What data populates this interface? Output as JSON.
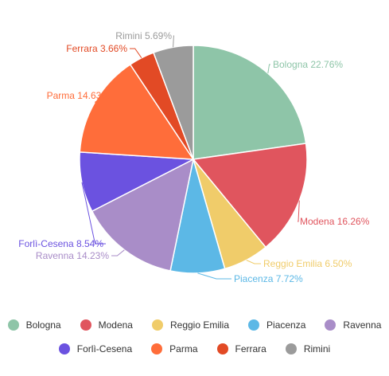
{
  "chart_data": {
    "type": "pie",
    "slices": [
      {
        "name": "Bologna",
        "value": 22.76,
        "label": "Bologna 22.76%",
        "color": "#8ec5a8"
      },
      {
        "name": "Modena",
        "value": 16.26,
        "label": "Modena 16.26%",
        "color": "#e0555e"
      },
      {
        "name": "Reggio Emilia",
        "value": 6.5,
        "label": "Reggio Emilia 6.50%",
        "color": "#f0cc6a"
      },
      {
        "name": "Piacenza",
        "value": 7.72,
        "label": "Piacenza 7.72%",
        "color": "#5cb8e6"
      },
      {
        "name": "Ravenna",
        "value": 14.23,
        "label": "Ravenna 14.23%",
        "color": "#a98dc8"
      },
      {
        "name": "Forlì-Cesena",
        "value": 8.54,
        "label": "Forlì-Cesena 8.54%",
        "color": "#6b52e0"
      },
      {
        "name": "Parma",
        "value": 14.63,
        "label": "Parma 14.63%",
        "color": "#ff6d3a"
      },
      {
        "name": "Ferrara",
        "value": 3.66,
        "label": "Ferrara 3.66%",
        "color": "#e24a25"
      },
      {
        "name": "Rimini",
        "value": 5.69,
        "label": "Rimini 5.69%",
        "color": "#9b9b9b"
      }
    ],
    "legend_position": "bottom"
  },
  "legend": {
    "rows": [
      [
        "Bologna",
        "Modena",
        "Reggio Emilia",
        "Piacenza",
        "Ravenna"
      ],
      [
        "Forlì-Cesena",
        "Parma",
        "Ferrara",
        "Rimini"
      ]
    ]
  }
}
